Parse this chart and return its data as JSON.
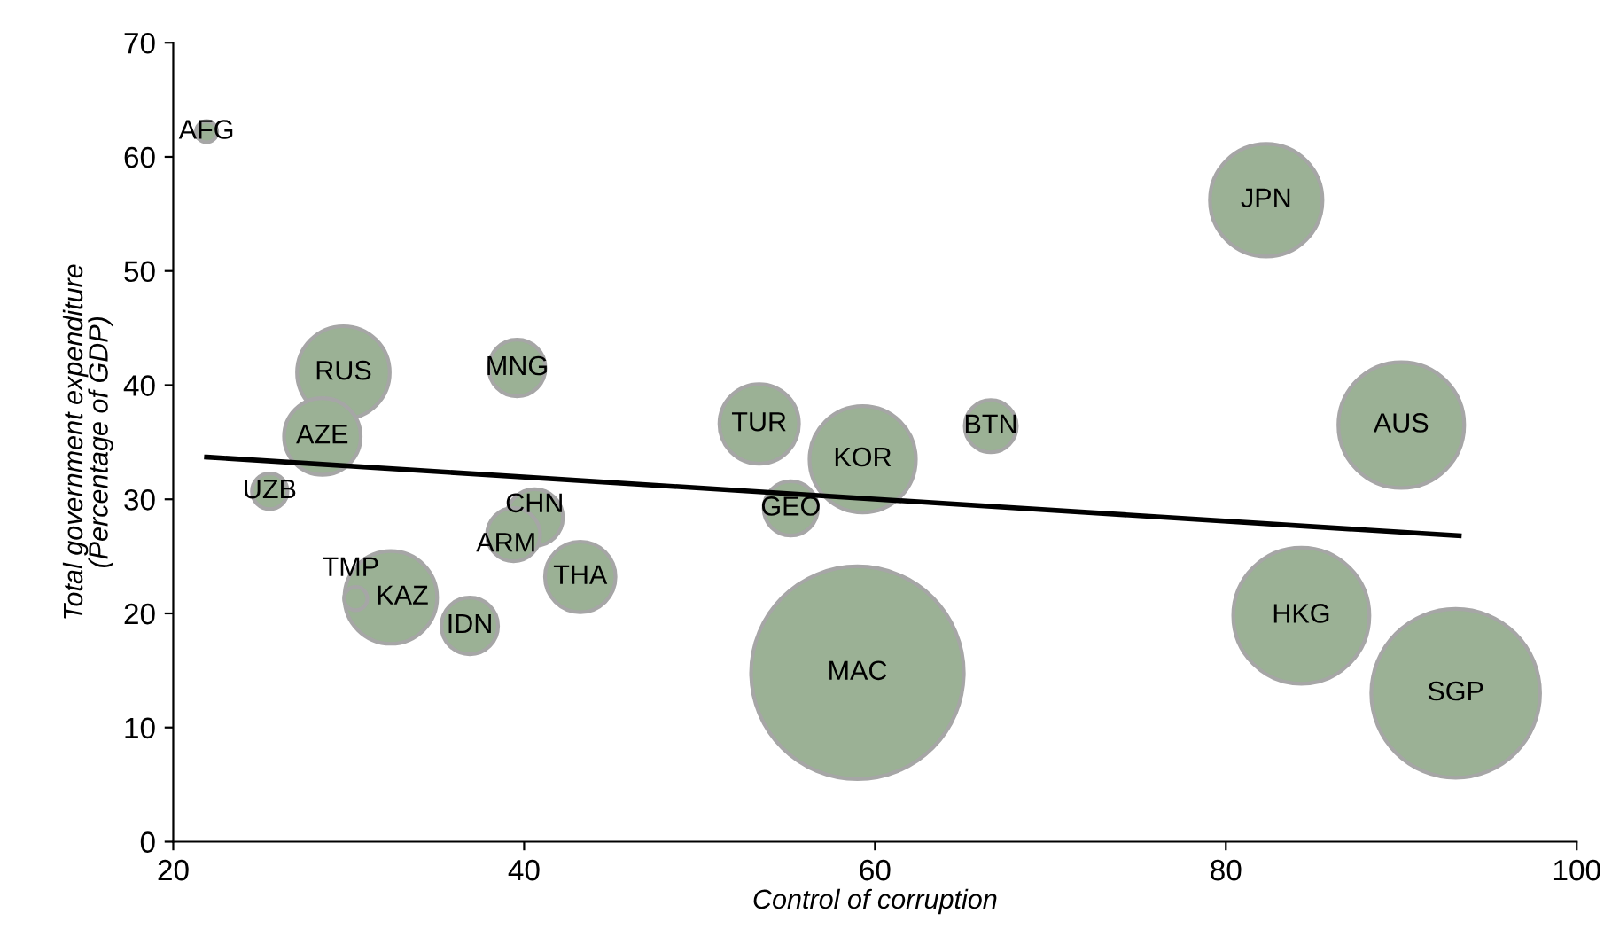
{
  "chart_data": {
    "type": "bubble",
    "xlabel": "Control of corruption",
    "ylabel": "Total government expenditure\n(Percentage of GDP)",
    "xlim": [
      20,
      100
    ],
    "xticks": [
      20,
      40,
      60,
      80,
      100
    ],
    "ylim": [
      0,
      70
    ],
    "yticks": [
      0,
      10,
      20,
      30,
      40,
      50,
      60,
      70
    ],
    "grid": false,
    "legend": false,
    "series": [
      {
        "color": "#9bb195",
        "x": [
          21.9,
          29.7,
          28.5,
          25.5,
          39.6,
          40.6,
          39.4,
          30.4,
          32.4,
          36.9,
          43.2,
          53.4,
          55.2,
          59.3,
          66.6,
          59.0,
          82.3,
          90.0,
          84.3,
          93.1
        ],
        "values": [
          62.2,
          41.1,
          35.5,
          30.7,
          41.5,
          28.4,
          26.9,
          21.3,
          21.4,
          18.9,
          23.2,
          36.6,
          29.2,
          33.5,
          36.4,
          14.8,
          56.2,
          36.5,
          19.8,
          13.0
        ],
        "sizes": [
          0.01,
          0.19,
          0.13,
          0.028,
          0.071,
          0.071,
          0.0625,
          0.012,
          0.19,
          0.071,
          0.11,
          0.14,
          0.065,
          0.25,
          0.06,
          1,
          0.28,
          0.35,
          0.41,
          0.63
        ]
      },
      {
        "type": "line",
        "color": "#000000",
        "x": [
          21.9,
          93.3
        ],
        "values": [
          33.7,
          26.8
        ]
      }
    ],
    "annotations": [
      {
        "text": "AFG",
        "x": 21.9,
        "y": 62.2
      },
      {
        "text": "RUS",
        "x": 29.7,
        "y": 41.1
      },
      {
        "text": "AZE",
        "x": 28.5,
        "y": 35.5
      },
      {
        "text": "UZB",
        "x": 25.5,
        "y": 30.7
      },
      {
        "text": "MNG",
        "x": 39.6,
        "y": 41.5
      },
      {
        "text": "CHN",
        "x": 40.6,
        "y": 28.4
      },
      {
        "text": "ARM",
        "x": 39.4,
        "y": 26.9
      },
      {
        "text": "TMP",
        "x": 30.4,
        "y": 21.3
      },
      {
        "text": "KAZ",
        "x": 32.4,
        "y": 21.4
      },
      {
        "text": "IDN",
        "x": 36.9,
        "y": 18.9
      },
      {
        "text": "THA",
        "x": 43.2,
        "y": 23.2
      },
      {
        "text": "TUR",
        "x": 53.4,
        "y": 36.6
      },
      {
        "text": "GEO",
        "x": 55.2,
        "y": 29.2
      },
      {
        "text": "KOR",
        "x": 59.3,
        "y": 33.5
      },
      {
        "text": "BTN",
        "x": 66.6,
        "y": 36.4
      },
      {
        "text": "MAC",
        "x": 59.0,
        "y": 14.8
      },
      {
        "text": "JPN",
        "x": 82.3,
        "y": 56.2
      },
      {
        "text": "AUS",
        "x": 90.0,
        "y": 36.5
      },
      {
        "text": "HKG",
        "x": 84.3,
        "y": 19.8
      },
      {
        "text": "SGP",
        "x": 93.1,
        "y": 13.0
      }
    ]
  }
}
